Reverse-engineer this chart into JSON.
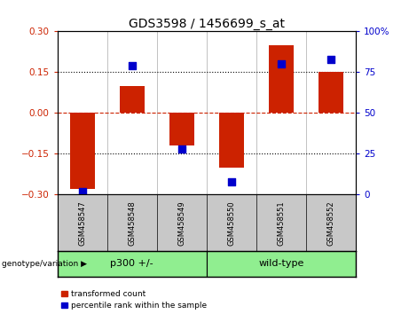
{
  "title": "GDS3598 / 1456699_s_at",
  "samples": [
    "GSM458547",
    "GSM458548",
    "GSM458549",
    "GSM458550",
    "GSM458551",
    "GSM458552"
  ],
  "transformed_count": [
    -0.28,
    0.1,
    -0.12,
    -0.2,
    0.25,
    0.15
  ],
  "percentile_rank": [
    2,
    79,
    28,
    8,
    80,
    83
  ],
  "groups": [
    {
      "label": "p300 +/-",
      "color": "#90ee90",
      "start": 0,
      "end": 3
    },
    {
      "label": "wild-type",
      "color": "#90ee90",
      "start": 3,
      "end": 6
    }
  ],
  "ylim_left": [
    -0.3,
    0.3
  ],
  "ylim_right": [
    0,
    100
  ],
  "yticks_left": [
    -0.3,
    -0.15,
    0,
    0.15,
    0.3
  ],
  "yticks_right": [
    0,
    25,
    50,
    75,
    100
  ],
  "hlines_dotted": [
    -0.15,
    0.15
  ],
  "hline_dashed": 0,
  "bar_color": "#cc2200",
  "dot_color": "#0000cc",
  "bar_width": 0.5,
  "dot_size": 40,
  "left_tick_color": "#cc2200",
  "right_tick_color": "#0000cc",
  "bg_color": "#ffffff",
  "label_genotype": "genotype/variation",
  "legend_items": [
    {
      "label": "transformed count",
      "color": "#cc2200"
    },
    {
      "label": "percentile rank within the sample",
      "color": "#0000cc"
    }
  ],
  "sample_bg": "#c8c8c8",
  "group_bg": "#90ee90"
}
